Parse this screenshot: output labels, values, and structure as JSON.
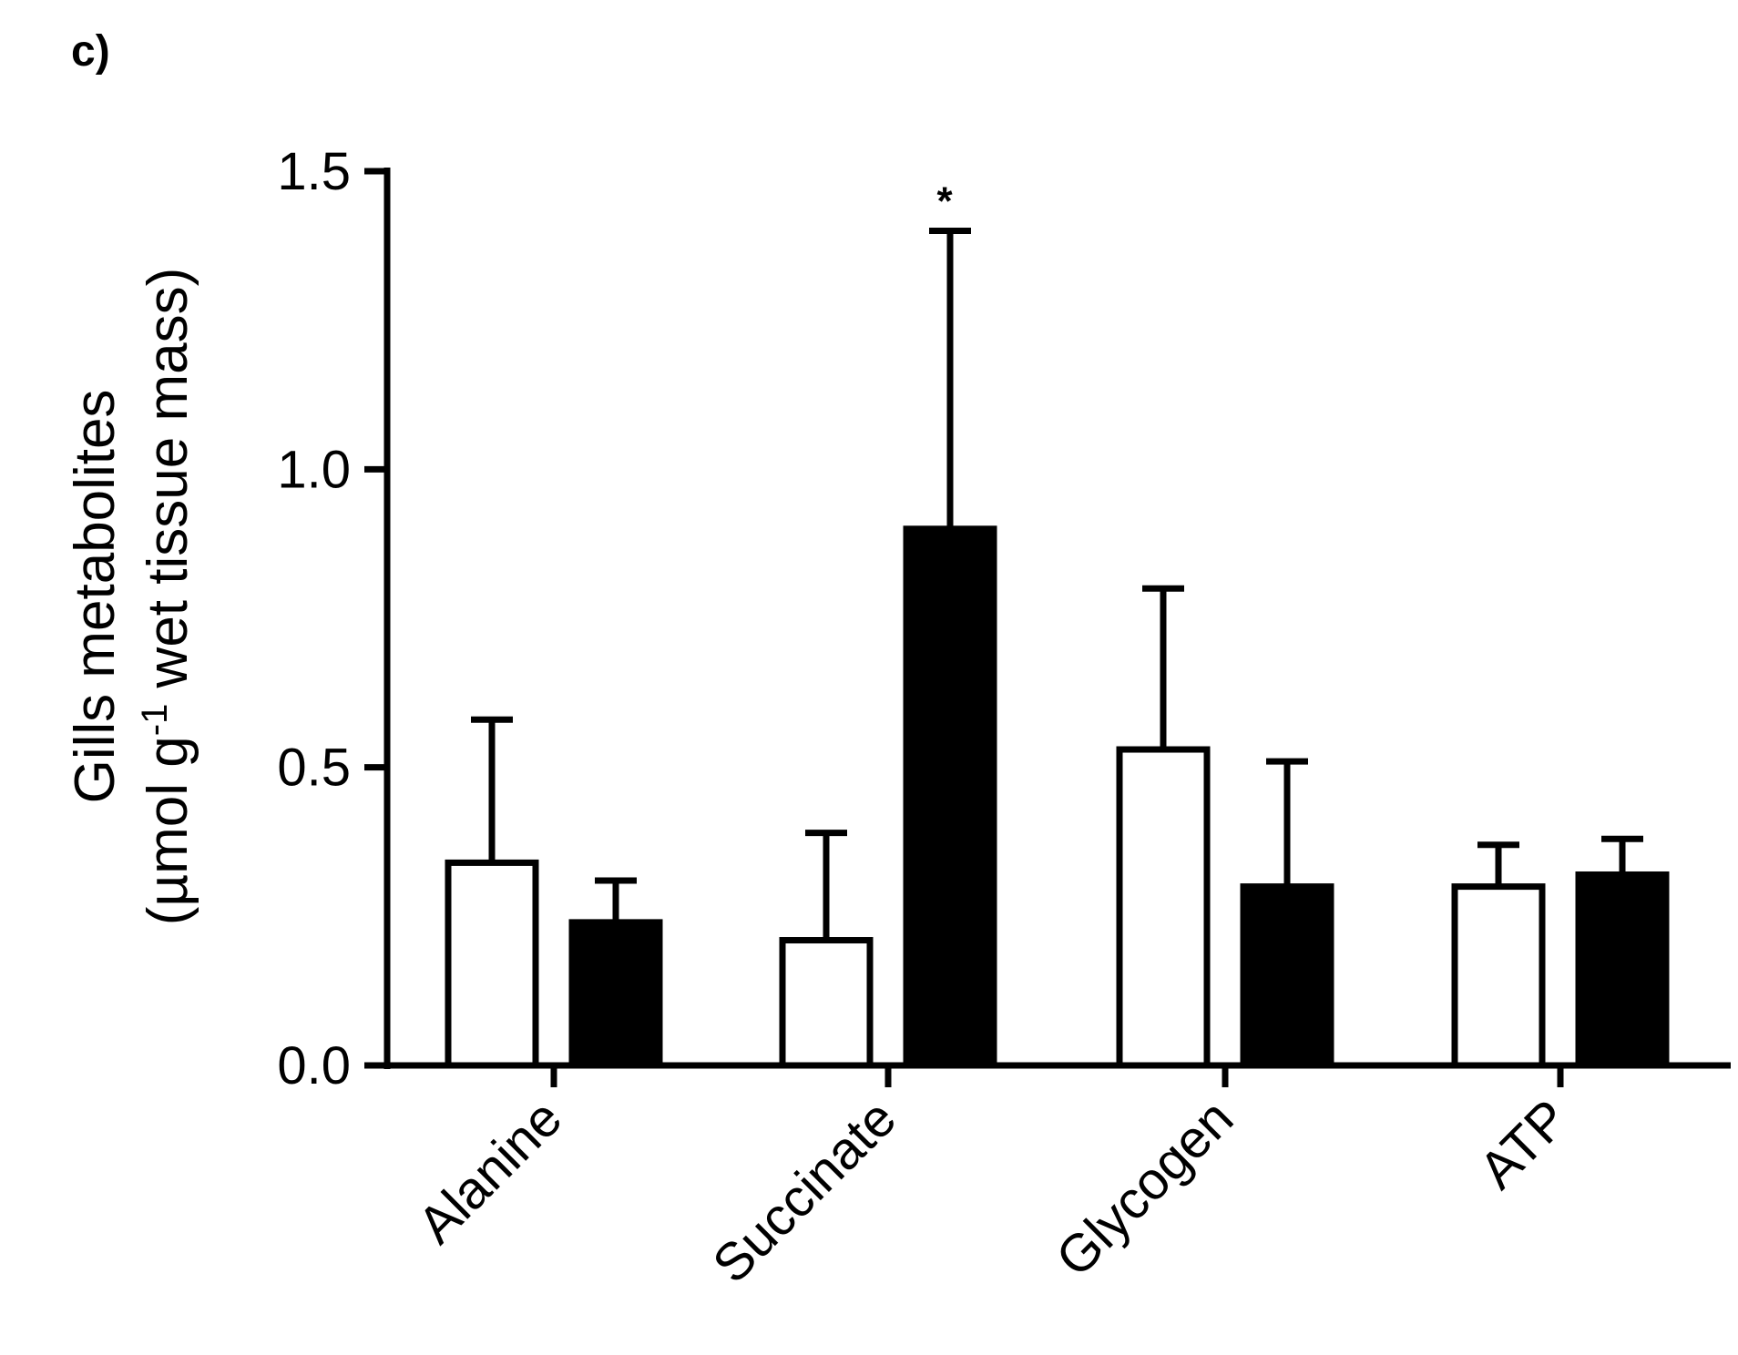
{
  "panel_label": "c)",
  "colors": {
    "series_open_fill": "#ffffff",
    "series_filled_fill": "#000000",
    "stroke": "#000000"
  },
  "chart_data": {
    "type": "bar",
    "categories": [
      "Alanine",
      "Succinate",
      "Glycogen",
      "ATP"
    ],
    "series": [
      {
        "values": [
          0.34,
          0.21,
          0.53,
          0.3
        ],
        "errors": [
          0.24,
          0.18,
          0.27,
          0.07
        ]
      },
      {
        "values": [
          0.24,
          0.9,
          0.3,
          0.32
        ],
        "errors": [
          0.07,
          0.5,
          0.21,
          0.06
        ]
      }
    ],
    "ylabel_line1": "Gills metabolites",
    "ylabel_line2_prefix": "(µmol g",
    "ylabel_line2_sup": "-1",
    "ylabel_line2_suffix": " wet tissue mass)",
    "ylim": [
      0,
      1.5
    ],
    "yticks": [
      "0.0",
      "0.5",
      "1.0",
      "1.5"
    ],
    "annotations": [
      {
        "category": "Succinate",
        "series": 1,
        "text": "*"
      }
    ],
    "grid": false,
    "legend": "none"
  }
}
